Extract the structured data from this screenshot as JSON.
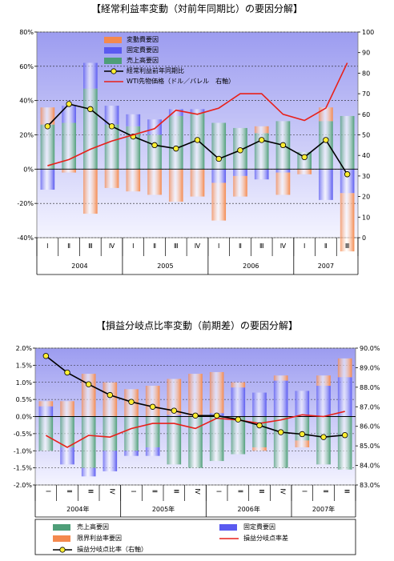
{
  "chart_data": [
    {
      "type": "bar",
      "title": "【経常利益率変動（対前年同期比）の要因分解】",
      "categories": [
        "Ⅰ",
        "Ⅱ",
        "Ⅲ",
        "Ⅳ",
        "Ⅰ",
        "Ⅱ",
        "Ⅲ",
        "Ⅳ",
        "Ⅰ",
        "Ⅱ",
        "Ⅲ",
        "Ⅳ",
        "Ⅰ",
        "Ⅱ",
        "Ⅲ"
      ],
      "years": [
        {
          "label": "2004",
          "span": 4
        },
        {
          "label": "2005",
          "span": 4
        },
        {
          "label": "2006",
          "span": 4
        },
        {
          "label": "2007",
          "span": 3
        }
      ],
      "ylim": [
        -40,
        80
      ],
      "yticks": [
        "-40%",
        "-20%",
        "0%",
        "20%",
        "40%",
        "60%",
        "80%"
      ],
      "y2lim": [
        0,
        100
      ],
      "y2ticks": [
        "0",
        "10",
        "20",
        "30",
        "40",
        "50",
        "60",
        "70",
        "80",
        "90",
        "100"
      ],
      "series": [
        {
          "name": "変動費要因",
          "kind": "bar",
          "color": "#f4894e",
          "values": [
            10,
            -2,
            -26,
            -11,
            -13,
            -15,
            -19,
            -16,
            -22,
            -12,
            4,
            -13,
            -3,
            8,
            -34
          ]
        },
        {
          "name": "固定費要因",
          "kind": "bar",
          "color": "#5a5af0",
          "values": [
            -12,
            10,
            15,
            11,
            7,
            9,
            4,
            2,
            -8,
            -4,
            -6,
            -2,
            0,
            -18,
            -14
          ]
        },
        {
          "name": "売上高要因",
          "kind": "bar",
          "color": "#4e9e78",
          "values": [
            26,
            27,
            47,
            26,
            25,
            20,
            31,
            33,
            27,
            24,
            21,
            28,
            10,
            28,
            31
          ]
        },
        {
          "name": "経常利益前年同期比",
          "kind": "line",
          "axis": "left",
          "color": "#000000",
          "marker": "#ffee33",
          "values": [
            25,
            38,
            35,
            25,
            19,
            14,
            12,
            17,
            6,
            11,
            17,
            14,
            7,
            17,
            -3
          ]
        },
        {
          "name": "WTI先物価格（ドル／バレル　右軸）",
          "kind": "line",
          "axis": "right",
          "color": "#e8201a",
          "values": [
            35,
            38,
            43,
            47,
            50,
            53,
            62,
            60,
            63,
            70,
            70,
            60,
            57,
            63,
            85
          ]
        }
      ]
    },
    {
      "type": "bar",
      "title": "【損益分岐点比率変動（前期差）の要因分解】",
      "categories": [
        "Ⅰ",
        "Ⅱ",
        "Ⅲ",
        "Ⅳ",
        "Ⅰ",
        "Ⅱ",
        "Ⅲ",
        "Ⅳ",
        "Ⅰ",
        "Ⅱ",
        "Ⅲ",
        "Ⅳ",
        "Ⅰ",
        "Ⅱ",
        "Ⅲ"
      ],
      "years": [
        {
          "label": "2004年",
          "span": 4
        },
        {
          "label": "2005年",
          "span": 4
        },
        {
          "label": "2006年",
          "span": 4
        },
        {
          "label": "2007年",
          "span": 3
        }
      ],
      "ylim": [
        -2.0,
        2.0
      ],
      "yticks": [
        "-2.0%",
        "-1.5%",
        "-1.0%",
        "-0.5%",
        "0.0%",
        "0.5%",
        "1.0%",
        "1.5%",
        "2.0%"
      ],
      "y2lim": [
        83.0,
        90.0
      ],
      "y2ticks": [
        "83.0%",
        "84.0%",
        "85.0%",
        "86.0%",
        "87.0%",
        "88.0%",
        "89.0%",
        "90.0%"
      ],
      "series": [
        {
          "name": "売上高要因",
          "kind": "bar",
          "color": "#4e9e78",
          "values": [
            -1.0,
            -0.9,
            -1.5,
            -1.0,
            -1.0,
            -0.9,
            -1.4,
            -1.5,
            -1.3,
            -1.1,
            -0.9,
            -1.5,
            -0.7,
            -1.4,
            -1.55
          ]
        },
        {
          "name": "固定費要因",
          "kind": "bar",
          "color": "#5a5af0",
          "values": [
            0.3,
            -0.5,
            -0.25,
            -0.6,
            -0.15,
            -0.25,
            0.05,
            0.0,
            0.1,
            0.85,
            0.7,
            1.05,
            0.75,
            0.9,
            1.15
          ]
        },
        {
          "name": "限界利益率要因",
          "kind": "bar",
          "color": "#f4894e",
          "values": [
            0.15,
            0.45,
            1.25,
            1.0,
            0.8,
            0.9,
            1.05,
            1.25,
            1.2,
            0.15,
            -0.1,
            0.15,
            -0.2,
            0.3,
            0.55
          ]
        },
        {
          "name": "損益分岐点率差",
          "kind": "line",
          "axis": "left",
          "color": "#e8201a",
          "values": [
            -0.55,
            -0.9,
            -0.55,
            -0.6,
            -0.35,
            -0.2,
            -0.2,
            -0.35,
            -0.05,
            -0.1,
            -0.2,
            -0.1,
            0.05,
            0.0,
            0.15
          ]
        },
        {
          "name": "損益分岐点比率（右軸）",
          "kind": "line",
          "axis": "right",
          "color": "#000000",
          "marker": "#ffee33",
          "values": [
            89.6,
            88.75,
            88.15,
            87.6,
            87.25,
            87.0,
            86.8,
            86.55,
            86.55,
            86.35,
            86.05,
            85.7,
            85.6,
            85.45,
            85.55
          ]
        }
      ]
    }
  ]
}
